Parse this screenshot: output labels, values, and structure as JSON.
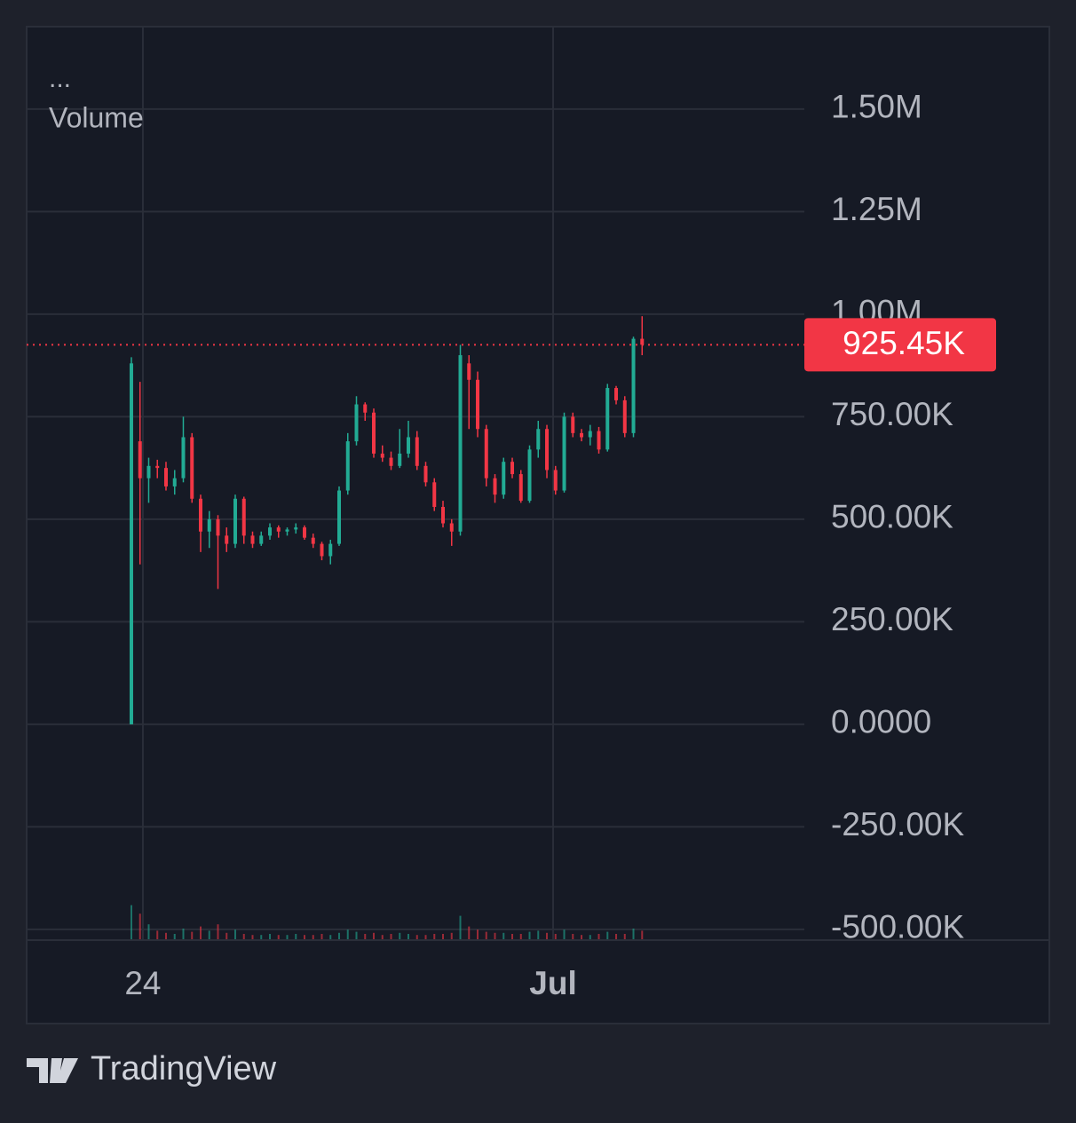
{
  "chart_data": {
    "type": "candlestick",
    "legend_menu": "...",
    "legend": "Volume",
    "up_color": "#22ab94",
    "down_color": "#f23645",
    "xlim": [
      -12.1,
      77.74
    ],
    "xticks": [
      {
        "value": 1.33,
        "label": "24"
      },
      {
        "value": 48.72,
        "label": "Jul"
      }
    ],
    "ylim": [
      -524000,
      1701000
    ],
    "yticks": [
      {
        "value": 1500000,
        "label": "1.50M"
      },
      {
        "value": 1250000,
        "label": "1.25M"
      },
      {
        "value": 1000000,
        "label": "1.00M"
      },
      {
        "value": 750000,
        "label": "750.00K"
      },
      {
        "value": 500000,
        "label": "500.00K"
      },
      {
        "value": 250000,
        "label": "250.00K"
      },
      {
        "value": 0,
        "label": "0.0000"
      },
      {
        "value": -250000,
        "label": "-250.00K"
      },
      {
        "value": -500000,
        "label": "-500.00K"
      }
    ],
    "grid": true,
    "last_price": 925450,
    "last_price_label": "925.45K",
    "ohlc": [
      [
        0,
        895000,
        0,
        880000
      ],
      [
        690000,
        835000,
        390000,
        600000
      ],
      [
        600000,
        650000,
        540000,
        630000
      ],
      [
        630000,
        645000,
        600000,
        625000
      ],
      [
        625000,
        640000,
        570000,
        580000
      ],
      [
        580000,
        620000,
        560000,
        600000
      ],
      [
        600000,
        750000,
        590000,
        700000
      ],
      [
        700000,
        710000,
        540000,
        550000
      ],
      [
        550000,
        560000,
        420000,
        470000
      ],
      [
        470000,
        520000,
        430000,
        500000
      ],
      [
        500000,
        510000,
        330000,
        460000
      ],
      [
        460000,
        480000,
        420000,
        440000
      ],
      [
        440000,
        560000,
        430000,
        550000
      ],
      [
        550000,
        555000,
        440000,
        460000
      ],
      [
        460000,
        470000,
        430000,
        440000
      ],
      [
        440000,
        470000,
        435000,
        460000
      ],
      [
        460000,
        490000,
        450000,
        480000
      ],
      [
        480000,
        485000,
        455000,
        470000
      ],
      [
        470000,
        480000,
        460000,
        475000
      ],
      [
        475000,
        490000,
        465000,
        480000
      ],
      [
        480000,
        485000,
        450000,
        455000
      ],
      [
        455000,
        465000,
        430000,
        440000
      ],
      [
        440000,
        445000,
        400000,
        410000
      ],
      [
        410000,
        450000,
        390000,
        440000
      ],
      [
        440000,
        580000,
        435000,
        570000
      ],
      [
        570000,
        710000,
        560000,
        690000
      ],
      [
        690000,
        800000,
        680000,
        780000
      ],
      [
        780000,
        785000,
        740000,
        760000
      ],
      [
        760000,
        770000,
        650000,
        660000
      ],
      [
        660000,
        680000,
        640000,
        650000
      ],
      [
        650000,
        665000,
        620000,
        630000
      ],
      [
        630000,
        720000,
        625000,
        660000
      ],
      [
        660000,
        740000,
        650000,
        700000
      ],
      [
        700000,
        715000,
        620000,
        630000
      ],
      [
        630000,
        640000,
        580000,
        590000
      ],
      [
        590000,
        600000,
        520000,
        530000
      ],
      [
        530000,
        545000,
        480000,
        490000
      ],
      [
        490000,
        500000,
        435000,
        470000
      ],
      [
        470000,
        925000,
        460000,
        900000
      ],
      [
        880000,
        900000,
        720000,
        840000
      ],
      [
        840000,
        860000,
        700000,
        720000
      ],
      [
        720000,
        730000,
        580000,
        600000
      ],
      [
        600000,
        610000,
        540000,
        560000
      ],
      [
        560000,
        650000,
        550000,
        640000
      ],
      [
        640000,
        650000,
        600000,
        610000
      ],
      [
        610000,
        620000,
        540000,
        545000
      ],
      [
        545000,
        680000,
        540000,
        670000
      ],
      [
        670000,
        740000,
        650000,
        720000
      ],
      [
        720000,
        730000,
        600000,
        620000
      ],
      [
        620000,
        630000,
        560000,
        570000
      ],
      [
        570000,
        760000,
        565000,
        750000
      ],
      [
        750000,
        760000,
        700000,
        710000
      ],
      [
        710000,
        720000,
        690000,
        700000
      ],
      [
        700000,
        730000,
        680000,
        715000
      ],
      [
        715000,
        725000,
        660000,
        670000
      ],
      [
        670000,
        830000,
        665000,
        820000
      ],
      [
        820000,
        825000,
        780000,
        790000
      ],
      [
        790000,
        800000,
        700000,
        710000
      ],
      [
        710000,
        945000,
        700000,
        940000
      ],
      [
        940000,
        995000,
        900000,
        925450
      ]
    ],
    "volume_lim": [
      0,
      1000
    ],
    "volume": [
      160,
      120,
      70,
      40,
      30,
      25,
      50,
      35,
      60,
      40,
      70,
      30,
      45,
      25,
      20,
      20,
      25,
      20,
      20,
      25,
      20,
      20,
      25,
      20,
      30,
      45,
      35,
      25,
      30,
      20,
      25,
      30,
      25,
      20,
      20,
      25,
      25,
      30,
      110,
      60,
      45,
      35,
      30,
      30,
      25,
      25,
      35,
      40,
      30,
      25,
      45,
      25,
      20,
      20,
      25,
      35,
      25,
      25,
      50,
      40
    ]
  },
  "branding": "TradingView"
}
